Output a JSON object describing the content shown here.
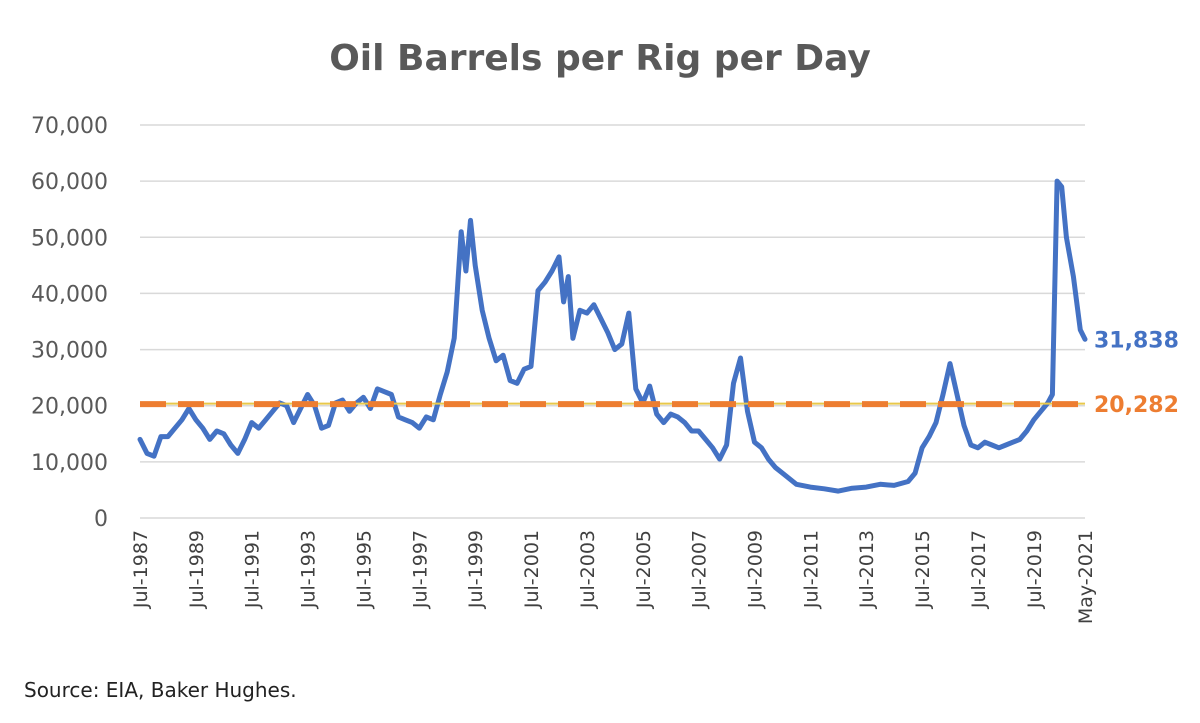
{
  "source_note": "Source: EIA, Baker Hughes.",
  "colors": {
    "series": "#4472C4",
    "average": "#ED7D31",
    "grid": "#D9D9D9",
    "text": "#595959"
  },
  "chart_data": {
    "type": "line",
    "title": "Oil Barrels per Rig per Day",
    "xlabel": "",
    "ylabel": "",
    "ylim": [
      0,
      70000
    ],
    "yticks": [
      0,
      10000,
      20000,
      30000,
      40000,
      50000,
      60000,
      70000
    ],
    "ytick_labels": [
      "0",
      "10,000",
      "20,000",
      "30,000",
      "40,000",
      "50,000",
      "60,000",
      "70,000"
    ],
    "x_range": [
      "1987-07",
      "2021-05"
    ],
    "xtick_labels": [
      "Jul-1987",
      "Jul-1989",
      "Jul-1991",
      "Jul-1993",
      "Jul-1995",
      "Jul-1997",
      "Jul-1999",
      "Jul-2001",
      "Jul-2003",
      "Jul-2005",
      "Jul-2007",
      "Jul-2009",
      "Jul-2011",
      "Jul-2013",
      "Jul-2015",
      "Jul-2017",
      "Jul-2019",
      "May-2021"
    ],
    "xtick_dates": [
      "1987-07",
      "1989-07",
      "1991-07",
      "1993-07",
      "1995-07",
      "1997-07",
      "1999-07",
      "2001-07",
      "2003-07",
      "2005-07",
      "2007-07",
      "2009-07",
      "2011-07",
      "2013-07",
      "2015-07",
      "2017-07",
      "2019-07",
      "2021-05"
    ],
    "grid": true,
    "legend": "none",
    "series": [
      {
        "color": "#4472C4",
        "end_label": "31,838",
        "points": [
          [
            "1987-07",
            14000
          ],
          [
            "1987-10",
            11500
          ],
          [
            "1988-01",
            11000
          ],
          [
            "1988-04",
            14500
          ],
          [
            "1988-07",
            14500
          ],
          [
            "1988-10",
            16000
          ],
          [
            "1989-01",
            17500
          ],
          [
            "1989-04",
            19500
          ],
          [
            "1989-07",
            17500
          ],
          [
            "1989-10",
            16000
          ],
          [
            "1990-01",
            14000
          ],
          [
            "1990-04",
            15500
          ],
          [
            "1990-07",
            15000
          ],
          [
            "1990-10",
            13000
          ],
          [
            "1991-01",
            11500
          ],
          [
            "1991-04",
            14000
          ],
          [
            "1991-07",
            17000
          ],
          [
            "1991-10",
            16000
          ],
          [
            "1992-01",
            17500
          ],
          [
            "1992-04",
            19000
          ],
          [
            "1992-07",
            20500
          ],
          [
            "1992-10",
            20000
          ],
          [
            "1993-01",
            17000
          ],
          [
            "1993-04",
            19500
          ],
          [
            "1993-07",
            22000
          ],
          [
            "1993-10",
            20000
          ],
          [
            "1994-01",
            16000
          ],
          [
            "1994-04",
            16500
          ],
          [
            "1994-07",
            20500
          ],
          [
            "1994-10",
            21000
          ],
          [
            "1995-01",
            19000
          ],
          [
            "1995-04",
            20500
          ],
          [
            "1995-07",
            21500
          ],
          [
            "1995-10",
            19500
          ],
          [
            "1996-01",
            23000
          ],
          [
            "1996-04",
            22500
          ],
          [
            "1996-07",
            22000
          ],
          [
            "1996-10",
            18000
          ],
          [
            "1997-01",
            17500
          ],
          [
            "1997-04",
            17000
          ],
          [
            "1997-07",
            16000
          ],
          [
            "1997-10",
            18000
          ],
          [
            "1998-01",
            17500
          ],
          [
            "1998-04",
            22000
          ],
          [
            "1998-07",
            26000
          ],
          [
            "1998-10",
            32000
          ],
          [
            "1999-01",
            51000
          ],
          [
            "1999-03",
            44000
          ],
          [
            "1999-05",
            53000
          ],
          [
            "1999-07",
            45000
          ],
          [
            "1999-10",
            37000
          ],
          [
            "2000-01",
            32000
          ],
          [
            "2000-04",
            28000
          ],
          [
            "2000-07",
            29000
          ],
          [
            "2000-10",
            24500
          ],
          [
            "2001-01",
            24000
          ],
          [
            "2001-04",
            26500
          ],
          [
            "2001-07",
            27000
          ],
          [
            "2001-10",
            40500
          ],
          [
            "2002-01",
            42000
          ],
          [
            "2002-04",
            44000
          ],
          [
            "2002-07",
            46500
          ],
          [
            "2002-09",
            38500
          ],
          [
            "2002-11",
            43000
          ],
          [
            "2003-01",
            32000
          ],
          [
            "2003-04",
            37000
          ],
          [
            "2003-07",
            36500
          ],
          [
            "2003-10",
            38000
          ],
          [
            "2004-01",
            35500
          ],
          [
            "2004-04",
            33000
          ],
          [
            "2004-07",
            30000
          ],
          [
            "2004-10",
            31000
          ],
          [
            "2005-01",
            36500
          ],
          [
            "2005-04",
            23000
          ],
          [
            "2005-07",
            20500
          ],
          [
            "2005-10",
            23500
          ],
          [
            "2006-01",
            18500
          ],
          [
            "2006-04",
            17000
          ],
          [
            "2006-07",
            18500
          ],
          [
            "2006-10",
            18000
          ],
          [
            "2007-01",
            17000
          ],
          [
            "2007-04",
            15500
          ],
          [
            "2007-07",
            15500
          ],
          [
            "2007-10",
            14000
          ],
          [
            "2008-01",
            12500
          ],
          [
            "2008-04",
            10500
          ],
          [
            "2008-07",
            13000
          ],
          [
            "2008-10",
            24000
          ],
          [
            "2009-01",
            28500
          ],
          [
            "2009-04",
            19000
          ],
          [
            "2009-07",
            13500
          ],
          [
            "2009-10",
            12500
          ],
          [
            "2010-01",
            10500
          ],
          [
            "2010-04",
            9000
          ],
          [
            "2010-07",
            8000
          ],
          [
            "2010-10",
            7000
          ],
          [
            "2011-01",
            6000
          ],
          [
            "2011-07",
            5500
          ],
          [
            "2012-01",
            5200
          ],
          [
            "2012-07",
            4800
          ],
          [
            "2013-01",
            5300
          ],
          [
            "2013-07",
            5500
          ],
          [
            "2014-01",
            6000
          ],
          [
            "2014-07",
            5800
          ],
          [
            "2015-01",
            6500
          ],
          [
            "2015-04",
            8000
          ],
          [
            "2015-07",
            12500
          ],
          [
            "2015-10",
            14500
          ],
          [
            "2016-01",
            17000
          ],
          [
            "2016-04",
            22000
          ],
          [
            "2016-07",
            27500
          ],
          [
            "2016-10",
            22000
          ],
          [
            "2017-01",
            16500
          ],
          [
            "2017-04",
            13000
          ],
          [
            "2017-07",
            12500
          ],
          [
            "2017-10",
            13500
          ],
          [
            "2018-01",
            13000
          ],
          [
            "2018-04",
            12500
          ],
          [
            "2018-07",
            13000
          ],
          [
            "2018-10",
            13500
          ],
          [
            "2019-01",
            14000
          ],
          [
            "2019-04",
            15500
          ],
          [
            "2019-07",
            17500
          ],
          [
            "2019-10",
            19000
          ],
          [
            "2020-01",
            20500
          ],
          [
            "2020-03",
            22000
          ],
          [
            "2020-05",
            60000
          ],
          [
            "2020-07",
            59000
          ],
          [
            "2020-09",
            50000
          ],
          [
            "2020-12",
            43000
          ],
          [
            "2021-03",
            33500
          ],
          [
            "2021-05",
            31838
          ]
        ]
      },
      {
        "color": "#ED7D31",
        "style": "dashed",
        "end_label": "20,282",
        "points": [
          [
            "1987-07",
            20282
          ],
          [
            "2021-05",
            20282
          ]
        ]
      }
    ]
  }
}
